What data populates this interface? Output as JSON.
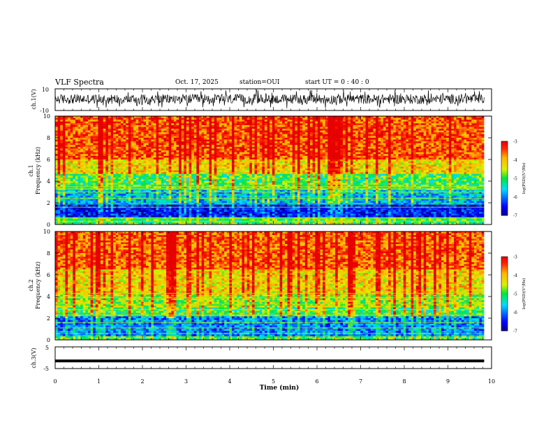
{
  "header": {
    "title": "VLF Spectra",
    "date": "Oct. 17, 2025",
    "station": "station=OUI",
    "start_ut": "start  UT =   0 : 40 : 0"
  },
  "chart_data": [
    {
      "type": "line",
      "name": "ch1-waveform",
      "ylabel": "ch.1(V)",
      "ylim": [
        -10,
        10
      ],
      "y_ticks": [
        "10",
        "-10"
      ],
      "xlim": [
        0,
        10
      ],
      "baseline": 0,
      "amplitude_range": [
        -4,
        5
      ],
      "spike_range": [
        -8,
        9
      ]
    },
    {
      "type": "heatmap",
      "name": "ch1-spectrogram",
      "ylabel": "ch.1\nFrequency (kHz)",
      "ylim": [
        0,
        10
      ],
      "y_ticks": [
        "0",
        "2",
        "4",
        "6",
        "8",
        "10"
      ],
      "xlim": [
        0,
        9.83
      ],
      "color_scale": {
        "label": "log(PSD)(V²/Hz)",
        "range": [
          -7,
          -3
        ],
        "ticks": [
          "-3",
          "-4",
          "-5",
          "-6",
          "-7"
        ]
      },
      "dominant_levels_by_band": [
        {
          "band_khz": [
            0,
            0.6
          ],
          "level": -5.0
        },
        {
          "band_khz": [
            0.6,
            1.8
          ],
          "level": -6.5
        },
        {
          "band_khz": [
            1.8,
            3.2
          ],
          "level": -5.7
        },
        {
          "band_khz": [
            3.2,
            4.6
          ],
          "level": -5.0
        },
        {
          "band_khz": [
            4.6,
            6.0
          ],
          "level": -4.2
        },
        {
          "band_khz": [
            6.0,
            10.0
          ],
          "level": -3.5
        }
      ],
      "horizontal_lines_khz": [
        0.3,
        0.6,
        1.6,
        2.4,
        3.0,
        3.3,
        3.5
      ]
    },
    {
      "type": "heatmap",
      "name": "ch2-spectrogram",
      "ylabel": "ch.2\nFrequency (kHz)",
      "ylim": [
        0,
        10
      ],
      "y_ticks": [
        "0",
        "2",
        "4",
        "6",
        "8",
        "10"
      ],
      "xlim": [
        0,
        9.83
      ],
      "color_scale": {
        "label": "log(PSD)(V²/Hz)",
        "range": [
          -7,
          -3
        ],
        "ticks": [
          "-3",
          "-4",
          "-5",
          "-6",
          "-7"
        ]
      },
      "dominant_levels_by_band": [
        {
          "band_khz": [
            0,
            0.4
          ],
          "level": -5.0
        },
        {
          "band_khz": [
            0.4,
            2.2
          ],
          "level": -6.0
        },
        {
          "band_khz": [
            2.2,
            3.0
          ],
          "level": -5.0
        },
        {
          "band_khz": [
            3.0,
            4.2
          ],
          "level": -4.7
        },
        {
          "band_khz": [
            4.2,
            6.5
          ],
          "level": -4.2
        },
        {
          "band_khz": [
            6.5,
            10.0
          ],
          "level": -3.6
        }
      ],
      "horizontal_lines_khz": [
        0.6,
        1.1,
        1.6,
        2.3,
        2.8,
        3.3,
        3.9,
        4.3
      ]
    },
    {
      "type": "line",
      "name": "ch3-level",
      "ylabel": "ch.3(V)",
      "ylim": [
        -5,
        5
      ],
      "y_ticks": [
        "5",
        "-5"
      ],
      "xlim": [
        0,
        9.83
      ],
      "constant_value": -1.5
    }
  ],
  "x_axis": {
    "label": "Time (min)",
    "xlim": [
      0,
      10
    ],
    "ticks": [
      "0",
      "1",
      "2",
      "3",
      "4",
      "5",
      "6",
      "7",
      "8",
      "9",
      "10"
    ]
  }
}
